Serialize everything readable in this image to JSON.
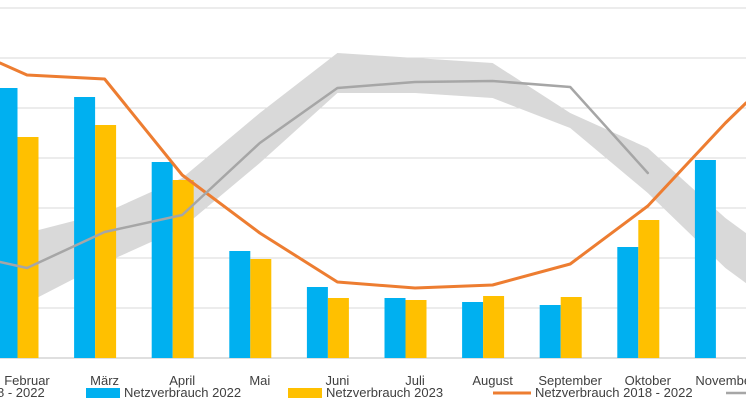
{
  "chart_data": {
    "type": "bar",
    "categories": [
      "Februar",
      "März",
      "April",
      "Mai",
      "Juni",
      "Juli",
      "August",
      "September",
      "Oktober",
      "November"
    ],
    "ylim": [
      0,
      7
    ],
    "grid": true,
    "legend_position": "bottom",
    "series": [
      {
        "name": "Netzverbrauch 2022",
        "type": "bar",
        "color": "#00B0F0",
        "values": [
          5.4,
          5.22,
          3.92,
          2.14,
          1.42,
          1.2,
          1.12,
          1.06,
          2.22,
          3.96
        ]
      },
      {
        "name": "Netzverbrauch 2023",
        "type": "bar",
        "color": "#FFC000",
        "values": [
          4.42,
          4.66,
          3.56,
          1.98,
          1.2,
          1.16,
          1.24,
          1.22,
          2.76,
          null
        ]
      },
      {
        "name": "Netzverbrauch 2018 - 2022",
        "type": "line",
        "color": "#ED7D31",
        "values": [
          5.66,
          5.58,
          3.66,
          2.5,
          1.52,
          1.4,
          1.46,
          1.88,
          3.04,
          4.7
        ]
      },
      {
        "name": "",
        "type": "line",
        "color": "#A6A6A6",
        "values": [
          1.8,
          2.52,
          2.86,
          4.3,
          5.4,
          5.52,
          5.54,
          5.42,
          3.7,
          null
        ]
      }
    ],
    "band": {
      "color": "#D9D9D9",
      "upper": [
        2.5,
        2.9,
        3.6,
        4.9,
        6.1,
        6.0,
        5.9,
        4.9,
        4.2,
        2.8
      ],
      "lower": [
        1.1,
        1.9,
        2.6,
        3.9,
        5.3,
        5.3,
        5.2,
        4.6,
        3.3,
        1.8
      ]
    },
    "legend_partial_left": "8 - 2022"
  }
}
